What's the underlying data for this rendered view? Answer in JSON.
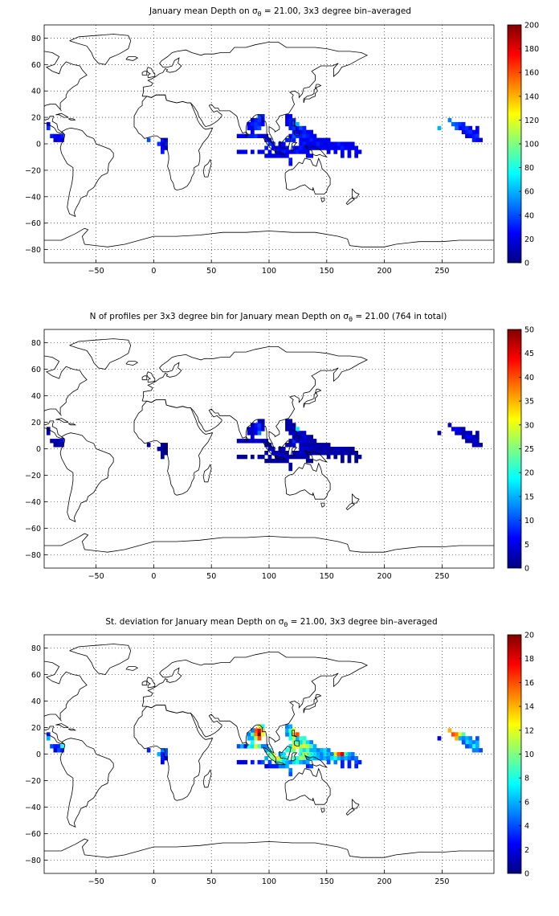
{
  "figure": {
    "panels": [
      {
        "title_pre": "January mean Depth on σ",
        "title_sub": "θ",
        "title_post": " = 21.00, 3x3 degree bin–averaged",
        "x_ticks": [
          "−50",
          "0",
          "50",
          "100",
          "150",
          "200",
          "250"
        ],
        "y_ticks": [
          "80",
          "60",
          "40",
          "20",
          "0",
          "−20",
          "−40",
          "−60",
          "−80"
        ],
        "cbar_ticks": [
          "200",
          "180",
          "160",
          "140",
          "120",
          "100",
          "80",
          "60",
          "40",
          "20",
          "0"
        ],
        "cbar_max": 200
      },
      {
        "title_pre": "N of profiles per 3x3 degree bin for January mean Depth on σ",
        "title_sub": "θ",
        "title_post": " = 21.00 (764 in total)",
        "x_ticks": [
          "−50",
          "0",
          "50",
          "100",
          "150",
          "200",
          "250"
        ],
        "y_ticks": [
          "80",
          "60",
          "40",
          "20",
          "0",
          "−20",
          "−40",
          "−60",
          "−80"
        ],
        "cbar_ticks": [
          "50",
          "45",
          "40",
          "35",
          "30",
          "25",
          "20",
          "15",
          "10",
          "5",
          "0"
        ],
        "cbar_max": 50
      },
      {
        "title_pre": "St. deviation for January mean Depth on σ",
        "title_sub": "θ",
        "title_post": " = 21.00, 3x3 degree bin–averaged",
        "x_ticks": [
          "−50",
          "0",
          "50",
          "100",
          "150",
          "200",
          "250"
        ],
        "y_ticks": [
          "80",
          "60",
          "40",
          "20",
          "0",
          "−20",
          "−40",
          "−60",
          "−80"
        ],
        "cbar_ticks": [
          "20",
          "18",
          "16",
          "14",
          "12",
          "10",
          "8",
          "6",
          "4",
          "2",
          "0"
        ],
        "cbar_max": 20
      }
    ]
  },
  "map": {
    "lon_range": [
      -95,
      295
    ],
    "lat_range": [
      -90,
      90
    ],
    "land_outline_color": "#000000",
    "grid": "dotted",
    "colormap": "jet"
  },
  "bins": {
    "cells": [
      [
        -93,
        15,
        20,
        1,
        3
      ],
      [
        -93,
        12,
        35,
        2,
        6
      ],
      [
        -90,
        6,
        30,
        2,
        4
      ],
      [
        -87,
        6,
        25,
        3,
        3
      ],
      [
        -84,
        6,
        20,
        2,
        3
      ],
      [
        -81,
        6,
        30,
        5,
        8
      ],
      [
        -84,
        3,
        25,
        2,
        4
      ],
      [
        -81,
        3,
        20,
        2,
        3
      ],
      [
        -87,
        3,
        15,
        1,
        2
      ],
      [
        -6,
        3,
        40,
        1,
        3
      ],
      [
        6,
        3,
        30,
        2,
        5
      ],
      [
        9,
        3,
        25,
        1,
        4
      ],
      [
        3,
        0,
        35,
        2,
        6
      ],
      [
        6,
        0,
        20,
        2,
        3
      ],
      [
        9,
        0,
        30,
        1,
        4
      ],
      [
        6,
        -3,
        25,
        1,
        3
      ],
      [
        9,
        -3,
        20,
        1,
        2
      ],
      [
        6,
        -6,
        30,
        1,
        2
      ],
      [
        72,
        6,
        20,
        2,
        4
      ],
      [
        75,
        6,
        25,
        3,
        6
      ],
      [
        78,
        6,
        20,
        2,
        3
      ],
      [
        81,
        6,
        30,
        4,
        8
      ],
      [
        84,
        6,
        30,
        3,
        7
      ],
      [
        87,
        6,
        35,
        5,
        12
      ],
      [
        90,
        6,
        25,
        4,
        9
      ],
      [
        93,
        6,
        20,
        3,
        5
      ],
      [
        81,
        15,
        25,
        3,
        5
      ],
      [
        84,
        15,
        30,
        4,
        9
      ],
      [
        87,
        15,
        35,
        6,
        15
      ],
      [
        90,
        15,
        30,
        8,
        20
      ],
      [
        93,
        15,
        25,
        5,
        12
      ],
      [
        84,
        12,
        20,
        3,
        6
      ],
      [
        87,
        12,
        35,
        5,
        11
      ],
      [
        90,
        12,
        40,
        12,
        16
      ],
      [
        87,
        18,
        30,
        7,
        16
      ],
      [
        90,
        18,
        35,
        9,
        18
      ],
      [
        93,
        18,
        25,
        6,
        14
      ],
      [
        90,
        21,
        40,
        6,
        12
      ],
      [
        93,
        21,
        30,
        3,
        8
      ],
      [
        84,
        18,
        20,
        2,
        5
      ],
      [
        81,
        12,
        25,
        3,
        6
      ],
      [
        84,
        9,
        20,
        4,
        8
      ],
      [
        96,
        6,
        20,
        3,
        5
      ],
      [
        96,
        3,
        30,
        2,
        6
      ],
      [
        99,
        3,
        25,
        3,
        7
      ],
      [
        99,
        0,
        35,
        4,
        9
      ],
      [
        102,
        0,
        30,
        5,
        11
      ],
      [
        102,
        -3,
        25,
        4,
        10
      ],
      [
        105,
        -3,
        20,
        5,
        13
      ],
      [
        105,
        -6,
        30,
        3,
        8
      ],
      [
        108,
        -6,
        25,
        4,
        9
      ],
      [
        111,
        -6,
        30,
        3,
        7
      ],
      [
        114,
        -6,
        25,
        3,
        6
      ],
      [
        117,
        -6,
        20,
        2,
        5
      ],
      [
        96,
        -3,
        30,
        2,
        6
      ],
      [
        93,
        -6,
        25,
        2,
        4
      ],
      [
        90,
        -6,
        20,
        2,
        3
      ],
      [
        84,
        -6,
        20,
        1,
        3
      ],
      [
        78,
        -6,
        25,
        1,
        2
      ],
      [
        75,
        -6,
        20,
        1,
        2
      ],
      [
        72,
        -6,
        20,
        1,
        2
      ],
      [
        108,
        -3,
        25,
        4,
        11
      ],
      [
        111,
        -3,
        20,
        3,
        7
      ],
      [
        114,
        -3,
        30,
        3,
        8
      ],
      [
        108,
        0,
        20,
        2,
        6
      ],
      [
        111,
        0,
        25,
        3,
        7
      ],
      [
        114,
        3,
        30,
        2,
        8
      ],
      [
        117,
        3,
        35,
        3,
        9
      ],
      [
        120,
        3,
        30,
        4,
        10
      ],
      [
        117,
        6,
        25,
        3,
        7
      ],
      [
        120,
        6,
        40,
        8,
        13
      ],
      [
        123,
        6,
        35,
        6,
        12
      ],
      [
        126,
        6,
        30,
        5,
        11
      ],
      [
        120,
        9,
        30,
        4,
        10
      ],
      [
        123,
        9,
        25,
        3,
        9
      ],
      [
        117,
        12,
        30,
        3,
        8
      ],
      [
        120,
        12,
        35,
        4,
        11
      ],
      [
        120,
        15,
        40,
        6,
        14
      ],
      [
        117,
        15,
        30,
        3,
        8
      ],
      [
        123,
        12,
        25,
        2,
        6
      ],
      [
        114,
        15,
        20,
        2,
        5
      ],
      [
        114,
        18,
        25,
        2,
        6
      ],
      [
        117,
        18,
        30,
        3,
        9
      ],
      [
        120,
        18,
        35,
        4,
        12
      ],
      [
        114,
        21,
        20,
        2,
        5
      ],
      [
        117,
        21,
        25,
        2,
        6
      ],
      [
        123,
        15,
        60,
        18,
        16
      ],
      [
        126,
        12,
        40,
        4,
        9
      ],
      [
        129,
        12,
        30,
        3,
        8
      ],
      [
        126,
        9,
        25,
        2,
        7
      ],
      [
        129,
        9,
        30,
        5,
        10
      ],
      [
        132,
        9,
        25,
        3,
        7
      ],
      [
        135,
        9,
        20,
        2,
        5
      ],
      [
        129,
        6,
        35,
        4,
        12
      ],
      [
        132,
        6,
        30,
        3,
        11
      ],
      [
        135,
        6,
        25,
        2,
        9
      ],
      [
        138,
        6,
        25,
        2,
        6
      ],
      [
        126,
        3,
        25,
        3,
        9
      ],
      [
        129,
        3,
        20,
        2,
        7
      ],
      [
        132,
        3,
        25,
        2,
        9
      ],
      [
        135,
        3,
        30,
        2,
        6
      ],
      [
        138,
        3,
        25,
        2,
        6
      ],
      [
        141,
        3,
        20,
        2,
        5
      ],
      [
        144,
        3,
        20,
        2,
        6
      ],
      [
        147,
        3,
        25,
        2,
        7
      ],
      [
        150,
        3,
        20,
        2,
        5
      ],
      [
        126,
        0,
        25,
        3,
        8
      ],
      [
        129,
        0,
        30,
        5,
        11
      ],
      [
        132,
        0,
        25,
        4,
        10
      ],
      [
        135,
        0,
        20,
        3,
        8
      ],
      [
        138,
        0,
        25,
        3,
        7
      ],
      [
        141,
        0,
        30,
        2,
        6
      ],
      [
        144,
        0,
        25,
        2,
        5
      ],
      [
        147,
        0,
        20,
        3,
        7
      ],
      [
        150,
        0,
        25,
        2,
        6
      ],
      [
        153,
        0,
        20,
        2,
        5
      ],
      [
        156,
        0,
        25,
        3,
        13
      ],
      [
        159,
        0,
        30,
        3,
        16
      ],
      [
        162,
        0,
        25,
        2,
        18
      ],
      [
        165,
        0,
        20,
        2,
        9
      ],
      [
        168,
        0,
        25,
        2,
        6
      ],
      [
        171,
        0,
        20,
        2,
        5
      ],
      [
        120,
        -3,
        30,
        3,
        9
      ],
      [
        123,
        -3,
        25,
        3,
        8
      ],
      [
        126,
        -3,
        30,
        4,
        11
      ],
      [
        129,
        -3,
        25,
        3,
        10
      ],
      [
        132,
        -3,
        20,
        2,
        6
      ],
      [
        135,
        -3,
        25,
        2,
        7
      ],
      [
        138,
        -3,
        20,
        2,
        6
      ],
      [
        141,
        -3,
        25,
        2,
        6
      ],
      [
        144,
        -3,
        20,
        2,
        5
      ],
      [
        147,
        -3,
        25,
        2,
        6
      ],
      [
        150,
        -3,
        20,
        2,
        5
      ],
      [
        153,
        -3,
        25,
        2,
        7
      ],
      [
        156,
        -3,
        20,
        2,
        8
      ],
      [
        159,
        -3,
        25,
        2,
        6
      ],
      [
        162,
        -3,
        30,
        2,
        5
      ],
      [
        165,
        -3,
        25,
        2,
        6
      ],
      [
        168,
        -3,
        20,
        1,
        5
      ],
      [
        171,
        -3,
        20,
        1,
        4
      ],
      [
        174,
        -3,
        25,
        1,
        5
      ],
      [
        120,
        -6,
        25,
        2,
        7
      ],
      [
        123,
        -6,
        30,
        2,
        8
      ],
      [
        126,
        -6,
        25,
        2,
        6
      ],
      [
        129,
        -6,
        20,
        2,
        5
      ],
      [
        132,
        -6,
        25,
        2,
        6
      ],
      [
        150,
        -6,
        20,
        1,
        4
      ],
      [
        156,
        -6,
        25,
        1,
        5
      ],
      [
        162,
        -6,
        20,
        1,
        3
      ],
      [
        168,
        -6,
        20,
        1,
        3
      ],
      [
        174,
        -6,
        25,
        1,
        4
      ],
      [
        177,
        -6,
        20,
        1,
        3
      ],
      [
        108,
        -9,
        25,
        2,
        5
      ],
      [
        111,
        -9,
        20,
        2,
        5
      ],
      [
        114,
        -9,
        25,
        2,
        6
      ],
      [
        117,
        -12,
        30,
        2,
        5
      ],
      [
        117,
        -15,
        25,
        2,
        4
      ],
      [
        132,
        -9,
        20,
        1,
        3
      ],
      [
        135,
        -9,
        25,
        1,
        4
      ],
      [
        162,
        -9,
        20,
        1,
        3
      ],
      [
        168,
        -9,
        20,
        1,
        3
      ],
      [
        174,
        -9,
        20,
        1,
        3
      ],
      [
        102,
        -9,
        20,
        1,
        3
      ],
      [
        105,
        -9,
        20,
        1,
        3
      ],
      [
        99,
        -6,
        25,
        2,
        4
      ],
      [
        99,
        -9,
        20,
        1,
        3
      ],
      [
        96,
        -9,
        20,
        1,
        2
      ],
      [
        246,
        12,
        60,
        1,
        2
      ],
      [
        255,
        18,
        50,
        3,
        14
      ],
      [
        258,
        15,
        45,
        5,
        16
      ],
      [
        261,
        15,
        40,
        6,
        15
      ],
      [
        264,
        15,
        35,
        4,
        12
      ],
      [
        267,
        15,
        30,
        3,
        9
      ],
      [
        264,
        12,
        25,
        3,
        6
      ],
      [
        267,
        12,
        30,
        2,
        5
      ],
      [
        270,
        12,
        35,
        3,
        6
      ],
      [
        273,
        12,
        25,
        2,
        5
      ],
      [
        270,
        9,
        30,
        6,
        7
      ],
      [
        273,
        9,
        35,
        5,
        6
      ],
      [
        276,
        9,
        25,
        3,
        5
      ],
      [
        279,
        9,
        20,
        2,
        6
      ],
      [
        276,
        6,
        30,
        4,
        8
      ],
      [
        279,
        6,
        35,
        3,
        6
      ],
      [
        279,
        3,
        25,
        2,
        5
      ],
      [
        282,
        3,
        20,
        2,
        4
      ],
      [
        276,
        3,
        30,
        3,
        5
      ],
      [
        273,
        6,
        25,
        2,
        5
      ],
      [
        270,
        6,
        20,
        2,
        4
      ],
      [
        267,
        9,
        20,
        2,
        4
      ],
      [
        261,
        12,
        45,
        4,
        14
      ],
      [
        279,
        12,
        25,
        2,
        4
      ]
    ]
  }
}
